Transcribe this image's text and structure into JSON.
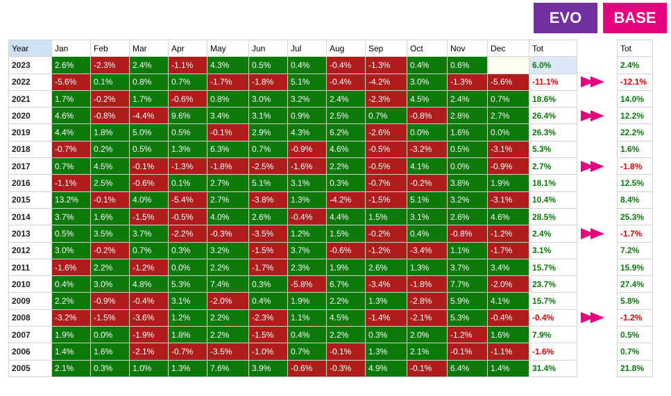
{
  "badges": {
    "evo": "EVO",
    "base": "BASE"
  },
  "colors": {
    "evo": "#7030a0",
    "base": "#e6007e",
    "positive_cell": "#0b7a0b",
    "negative_cell": "#b01c1c",
    "positive_text": "#0b7a0b",
    "negative_text": "#e00000"
  },
  "main_table": {
    "headers": [
      "Year",
      "Jan",
      "Feb",
      "Mar",
      "Apr",
      "May",
      "Jun",
      "Jul",
      "Aug",
      "Sep",
      "Oct",
      "Nov",
      "Dec",
      "Tot"
    ],
    "rows": [
      {
        "year": "2023",
        "months": [
          "2.6%",
          "-2.3%",
          "2.4%",
          "-1.1%",
          "4.3%",
          "0.5%",
          "0.4%",
          "-0.4%",
          "-1.3%",
          "0.4%",
          "0.6%",
          ""
        ],
        "tot": "6.0%"
      },
      {
        "year": "2022",
        "months": [
          "-5.6%",
          "0.1%",
          "0.8%",
          "0.7%",
          "-1.7%",
          "-1.8%",
          "5.1%",
          "-0.4%",
          "-4.2%",
          "3.0%",
          "-1.3%",
          "-5.6%"
        ],
        "tot": "-11.1%"
      },
      {
        "year": "2021",
        "months": [
          "1.7%",
          "-0.2%",
          "1.7%",
          "-0.6%",
          "0.8%",
          "3.0%",
          "3.2%",
          "2.4%",
          "-2.3%",
          "4.5%",
          "2.4%",
          "0.7%"
        ],
        "tot": "18.6%"
      },
      {
        "year": "2020",
        "months": [
          "4.6%",
          "-0.8%",
          "-4.4%",
          "9.6%",
          "3.4%",
          "3.1%",
          "0.9%",
          "2.5%",
          "0.7%",
          "-0.8%",
          "2.8%",
          "2.7%"
        ],
        "tot": "26.4%"
      },
      {
        "year": "2019",
        "months": [
          "4.4%",
          "1.8%",
          "5.0%",
          "0.5%",
          "-0.1%",
          "2.9%",
          "4.3%",
          "6.2%",
          "-2.6%",
          "0.0%",
          "1.6%",
          "0.0%"
        ],
        "tot": "26.3%"
      },
      {
        "year": "2018",
        "months": [
          "-0.7%",
          "0.2%",
          "0.5%",
          "1.3%",
          "6.3%",
          "0.7%",
          "-0.9%",
          "4.6%",
          "-0.5%",
          "-3.2%",
          "0.5%",
          "-3.1%"
        ],
        "tot": "5.3%"
      },
      {
        "year": "2017",
        "months": [
          "0.7%",
          "4.5%",
          "-0.1%",
          "-1.3%",
          "-1.8%",
          "-2.5%",
          "-1.6%",
          "2.2%",
          "-0.5%",
          "4.1%",
          "0.0%",
          "-0.9%"
        ],
        "tot": "2.7%"
      },
      {
        "year": "2016",
        "months": [
          "-1.1%",
          "2.5%",
          "-0.6%",
          "0.1%",
          "2.7%",
          "5.1%",
          "3.1%",
          "0.3%",
          "-0.7%",
          "-0.2%",
          "3.8%",
          "1.9%"
        ],
        "tot": "18.1%"
      },
      {
        "year": "2015",
        "months": [
          "13.2%",
          "-0.1%",
          "4.0%",
          "-5.4%",
          "2.7%",
          "-3.8%",
          "1.3%",
          "-4.2%",
          "-1.5%",
          "5.1%",
          "3.2%",
          "-3.1%"
        ],
        "tot": "10.4%"
      },
      {
        "year": "2014",
        "months": [
          "3.7%",
          "1.6%",
          "-1.5%",
          "-0.5%",
          "4.0%",
          "2.6%",
          "-0.4%",
          "4.4%",
          "1.5%",
          "3.1%",
          "2.6%",
          "4.6%"
        ],
        "tot": "28.5%"
      },
      {
        "year": "2013",
        "months": [
          "0.5%",
          "3.5%",
          "3.7%",
          "-2.2%",
          "-0.3%",
          "-3.5%",
          "1.2%",
          "1.5%",
          "-0.2%",
          "0.4%",
          "-0.8%",
          "-1.2%"
        ],
        "tot": "2.4%"
      },
      {
        "year": "2012",
        "months": [
          "3.0%",
          "-0.2%",
          "0.7%",
          "0.3%",
          "3.2%",
          "-1.5%",
          "3.7%",
          "-0.6%",
          "-1.2%",
          "-3.4%",
          "1.1%",
          "-1.7%"
        ],
        "tot": "3.1%"
      },
      {
        "year": "2011",
        "months": [
          "-1.6%",
          "2.2%",
          "-1.2%",
          "0.0%",
          "2.2%",
          "-1.7%",
          "2.3%",
          "1.9%",
          "2.6%",
          "1.3%",
          "3.7%",
          "3.4%"
        ],
        "tot": "15.7%"
      },
      {
        "year": "2010",
        "months": [
          "0.4%",
          "3.0%",
          "4.8%",
          "5.3%",
          "7.4%",
          "0.3%",
          "-5.8%",
          "6.7%",
          "-3.4%",
          "-1.8%",
          "7.7%",
          "-2.0%"
        ],
        "tot": "23.7%"
      },
      {
        "year": "2009",
        "months": [
          "2.2%",
          "-0.9%",
          "-0.4%",
          "3.1%",
          "-2.0%",
          "0.4%",
          "1.9%",
          "2.2%",
          "1.3%",
          "-2.8%",
          "5.9%",
          "4.1%"
        ],
        "tot": "15.7%"
      },
      {
        "year": "2008",
        "months": [
          "-3.2%",
          "-1.5%",
          "-3.6%",
          "1.2%",
          "2.2%",
          "-2.3%",
          "1.1%",
          "4.5%",
          "-1.4%",
          "-2.1%",
          "5.3%",
          "-0.4%"
        ],
        "tot": "-0.4%"
      },
      {
        "year": "2007",
        "months": [
          "1.9%",
          "0.0%",
          "-1.9%",
          "1.8%",
          "2.2%",
          "-1.5%",
          "0.4%",
          "2.2%",
          "0.3%",
          "2.0%",
          "-1.2%",
          "1.6%"
        ],
        "tot": "7.9%"
      },
      {
        "year": "2006",
        "months": [
          "1.4%",
          "1.6%",
          "-2.1%",
          "-0.7%",
          "-3.5%",
          "-1.0%",
          "0.7%",
          "-0.1%",
          "1.3%",
          "2.1%",
          "-0.1%",
          "-1.1%"
        ],
        "tot": "-1.6%"
      },
      {
        "year": "2005",
        "months": [
          "2.1%",
          "0.3%",
          "1.0%",
          "1.3%",
          "7.6%",
          "3.9%",
          "-0.6%",
          "-0.3%",
          "4.9%",
          "-0.1%",
          "6.4%",
          "1.4%"
        ],
        "tot": "31.4%"
      }
    ]
  },
  "base_table": {
    "header": "Tot",
    "values": [
      "2.4%",
      "-12.1%",
      "14.0%",
      "12.2%",
      "22.2%",
      "1.6%",
      "-1.8%",
      "12.5%",
      "8.4%",
      "25.3%",
      "-1.7%",
      "7.2%",
      "15.9%",
      "27.4%",
      "5.8%",
      "-1.2%",
      "0.5%",
      "0.7%",
      "21.8%"
    ]
  },
  "arrows": {
    "icon": "double-arrow-right-icon",
    "color": "#e6007e",
    "rows": [
      "2022",
      "2020",
      "2017",
      "2013",
      "2008"
    ]
  }
}
